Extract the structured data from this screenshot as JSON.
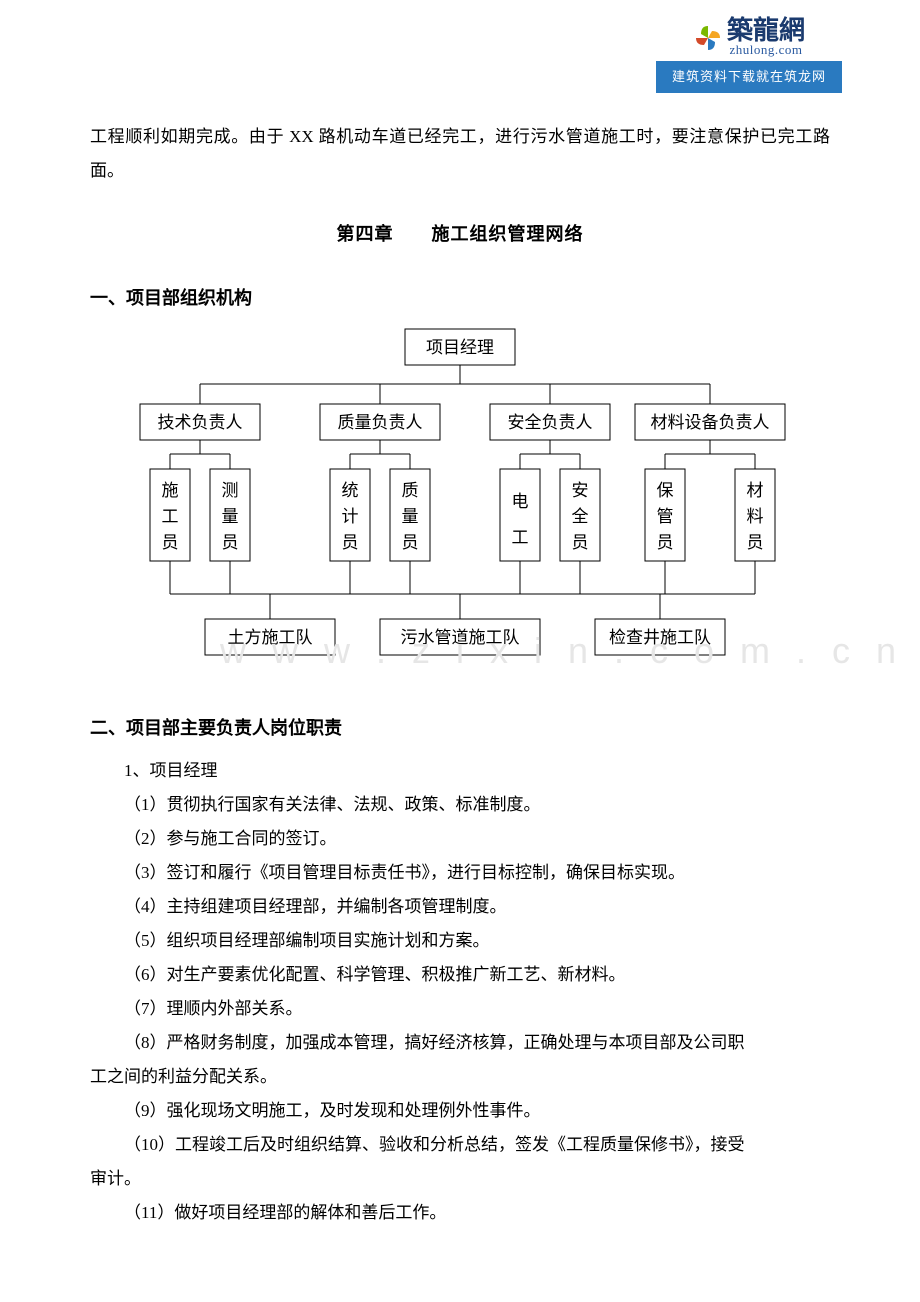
{
  "logo": {
    "name": "築龍網",
    "url": "zhulong.com",
    "banner": "建筑资料下载就在筑龙网",
    "icon_colors": [
      "#7ab800",
      "#f5a623",
      "#2a7ac0",
      "#d34a2a"
    ]
  },
  "watermark": "w w w . z i x i n . c o m . c n",
  "intro": "工程顺利如期完成。由于 XX 路机动车道已经完工，进行污水管道施工时，要注意保护已完工路面。",
  "chapter": "第四章　　施工组织管理网络",
  "section1": "一、项目部组织机构",
  "section2": "二、项目部主要负责人岗位职责",
  "org": {
    "root": "项目经理",
    "mids": [
      "技术负责人",
      "质量负责人",
      "安全负责人",
      "材料设备负责人"
    ],
    "leaves": [
      "施工员",
      "测量员",
      "统计员",
      "质量员",
      "电工",
      "安全员",
      "保管员",
      "材料员"
    ],
    "teams": [
      "土方施工队",
      "污水管道施工队",
      "检查井施工队"
    ],
    "box_stroke": "#000000",
    "box_fill": "#ffffff",
    "line_stroke": "#000000",
    "font_size_mid": 17,
    "font_size_leaf": 17
  },
  "duties": {
    "role1": "1、项目经理",
    "items": [
      "（1）贯彻执行国家有关法律、法规、政策、标准制度。",
      "（2）参与施工合同的签订。",
      "（3）签订和履行《项目管理目标责任书》，进行目标控制，确保目标实现。",
      "（4）主持组建项目经理部，并编制各项管理制度。",
      "（5）组织项目经理部编制项目实施计划和方案。",
      "（6）对生产要素优化配置、科学管理、积极推广新工艺、新材料。",
      "（7）理顺内外部关系。"
    ],
    "item8a": "（8）严格财务制度，加强成本管理，搞好经济核算，正确处理与本项目部及公司职",
    "item8b": "工之间的利益分配关系。",
    "item9": "（9）强化现场文明施工，及时发现和处理例外性事件。",
    "item10a": "（10）工程竣工后及时组织结算、验收和分析总结，签发《工程质量保修书》，接受",
    "item10b": "审计。",
    "item11": "（11）做好项目经理部的解体和善后工作。"
  }
}
